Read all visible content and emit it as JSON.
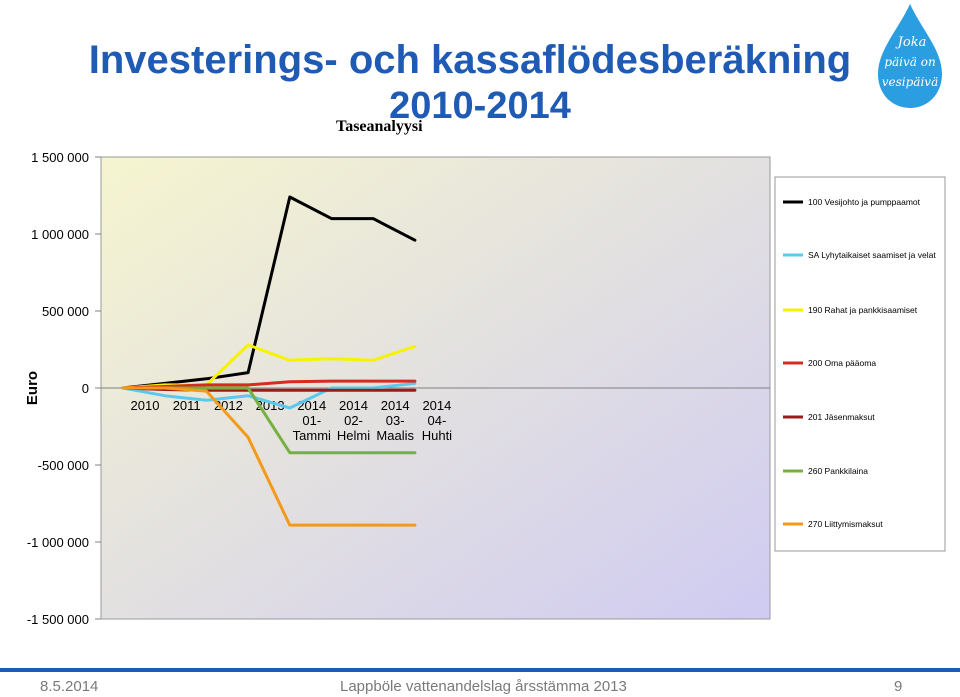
{
  "slide": {
    "title_line1": "Investerings- och kassaflödesberäkning",
    "title_line2": "2010-2014",
    "subtitle": "Taseanalyysi",
    "logo_text": [
      "Joka",
      "päivä on",
      "vesipäivä"
    ],
    "footer_date": "8.5.2014",
    "footer_center": "Lappböle vattenandelslag årsstämma 2013",
    "page_number": "9"
  },
  "chart_data": {
    "type": "line",
    "title": "Taseanalyysi",
    "ylabel": "Euro",
    "xlabel": "",
    "ylim": [
      -1500000,
      1500000
    ],
    "yticks": [
      1500000,
      1000000,
      500000,
      0,
      -500000,
      -1000000,
      -1500000
    ],
    "ytick_labels": [
      "1 500 000",
      "1 000 000",
      "500 000",
      "0",
      "-500 000",
      "-1 000 000",
      "-1 500 000"
    ],
    "categories": [
      [
        "2010"
      ],
      [
        "2011"
      ],
      [
        "2012"
      ],
      [
        "2013"
      ],
      [
        "2014",
        "01-",
        "Tammi"
      ],
      [
        "2014",
        "02-",
        "Helmi"
      ],
      [
        "2014",
        "03-",
        "Maalis"
      ],
      [
        "2014",
        "04-",
        "Huhti"
      ]
    ],
    "legend_position": "right",
    "plot_background": [
      "#f6f5cf",
      "#cfcbf2"
    ],
    "series": [
      {
        "name": "100 Vesijohto ja pumppaamot",
        "color": "#000000",
        "values": [
          0,
          30000,
          60000,
          100000,
          1240000,
          1100000,
          1100000,
          960000
        ]
      },
      {
        "name": "SA Lyhytaikaiset saamiset ja velat",
        "color": "#5bc8ee",
        "values": [
          0,
          -50000,
          -80000,
          -50000,
          -130000,
          0,
          0,
          30000
        ]
      },
      {
        "name": "190 Rahat ja pankkisaamiset",
        "color": "#f7f200",
        "values": [
          0,
          20000,
          20000,
          280000,
          180000,
          190000,
          180000,
          270000
        ]
      },
      {
        "name": "200 Oma pääoma",
        "color": "#d62b1f",
        "values": [
          0,
          10000,
          20000,
          20000,
          40000,
          45000,
          45000,
          45000
        ]
      },
      {
        "name": "201 Jäsenmaksut",
        "color": "#9b1b18",
        "values": [
          0,
          -10000,
          -15000,
          -15000,
          -15000,
          -15000,
          -15000,
          -15000
        ]
      },
      {
        "name": "260 Pankkilaina",
        "color": "#76b041",
        "values": [
          0,
          0,
          0,
          0,
          -420000,
          -420000,
          -420000,
          -420000
        ]
      },
      {
        "name": "270 Liittymismaksut",
        "color": "#f39a1a",
        "values": [
          0,
          0,
          -20000,
          -320000,
          -890000,
          -890000,
          -890000,
          -890000
        ]
      }
    ]
  }
}
